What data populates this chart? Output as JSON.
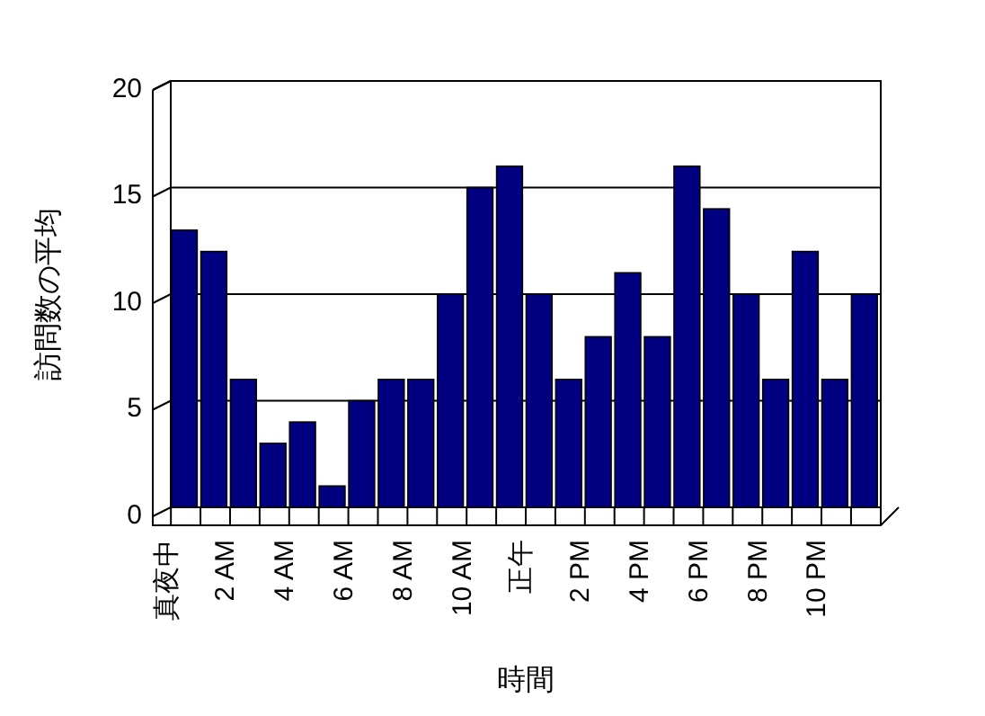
{
  "chart_data": {
    "type": "bar",
    "xlabel": "時間",
    "ylabel": "訪問数の平均",
    "categories": [
      "真夜中",
      null,
      "2 AM",
      null,
      "4 AM",
      null,
      "6 AM",
      null,
      "8 AM",
      null,
      "10 AM",
      null,
      "正午",
      null,
      "2 PM",
      null,
      "4 PM",
      null,
      "6 PM",
      null,
      "8 PM",
      null,
      "10 PM",
      null
    ],
    "values": [
      13,
      12,
      6,
      3,
      4,
      1,
      5,
      6,
      6,
      10,
      15,
      16,
      10,
      6,
      8,
      11,
      8,
      16,
      14,
      10,
      6,
      12,
      6,
      10
    ],
    "color": "#000080",
    "ylim": [
      0,
      20
    ],
    "yticks": [
      0,
      5,
      10,
      15,
      20
    ],
    "grid": "y"
  }
}
